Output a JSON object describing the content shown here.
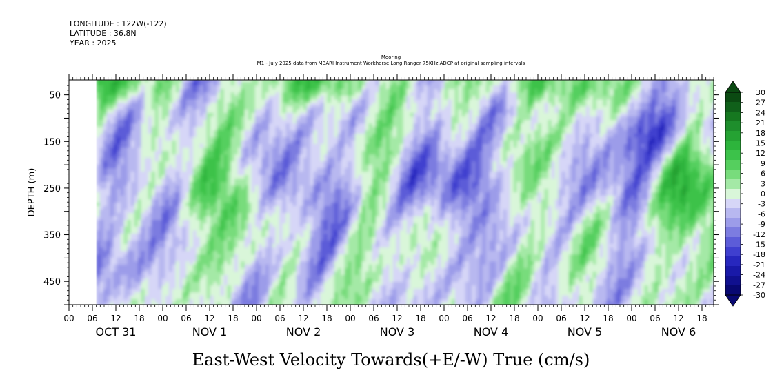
{
  "header": {
    "longitude": "LONGITUDE : 122W(-122)",
    "latitude": "LATITUDE : 36.8N",
    "year": "YEAR : 2025",
    "title_line1": "Mooring",
    "title_line2": "M1 - July 2025 data from MBARI Instrument Workhorse Long Ranger 75KHz ADCP at original sampling intervals"
  },
  "chart_data": {
    "type": "heatmap",
    "title": "Mooring",
    "subtitle": "M1 - July 2025 data from MBARI Instrument Workhorse Long Ranger 75KHz ADCP at original sampling intervals",
    "xlabel": "East-West Velocity Towards(+E/-W) True (cm/s)",
    "ylabel": "DEPTH (m)",
    "x_start": "2025-10-31T00:00",
    "x_end": "2025-11-06T21:00",
    "x_hour_ticks": [
      "00",
      "06",
      "12",
      "18",
      "00",
      "06",
      "12",
      "18",
      "00",
      "06",
      "12",
      "18",
      "00",
      "06",
      "12",
      "18",
      "00",
      "06",
      "12",
      "18",
      "00",
      "06",
      "12",
      "18",
      "00",
      "06",
      "12",
      "18"
    ],
    "day_labels": [
      "OCT 31",
      "NOV  1",
      "NOV  2",
      "NOV  3",
      "NOV  4",
      "NOV  5",
      "NOV  6"
    ],
    "data_start": "2025-10-31T07:00",
    "y_ticks": [
      50,
      150,
      250,
      350,
      450
    ],
    "ylim": [
      500,
      18
    ],
    "y_inverted": true,
    "value_range": [
      -30,
      30
    ],
    "colorbar_labels": [
      "30",
      "27",
      "24",
      "21",
      "18",
      "15",
      "12",
      "9",
      "6",
      "3",
      "0",
      "-3",
      "-6",
      "-9",
      "-12",
      "-15",
      "-18",
      "-21",
      "-24",
      "-27",
      "-30"
    ],
    "colorbar_colors": [
      "#0b4a12",
      "#10601a",
      "#167820",
      "#1e8e2c",
      "#25a233",
      "#2db43c",
      "#3cc24a",
      "#55cf5e",
      "#78dc7c",
      "#a4e9a6",
      "#d9f6d9",
      "#d6d6f7",
      "#b8b8f0",
      "#9c9ce9",
      "#7c7ce0",
      "#5c5cd8",
      "#3f3fcf",
      "#2727be",
      "#1919a8",
      "#10108f",
      "#080872"
    ]
  }
}
